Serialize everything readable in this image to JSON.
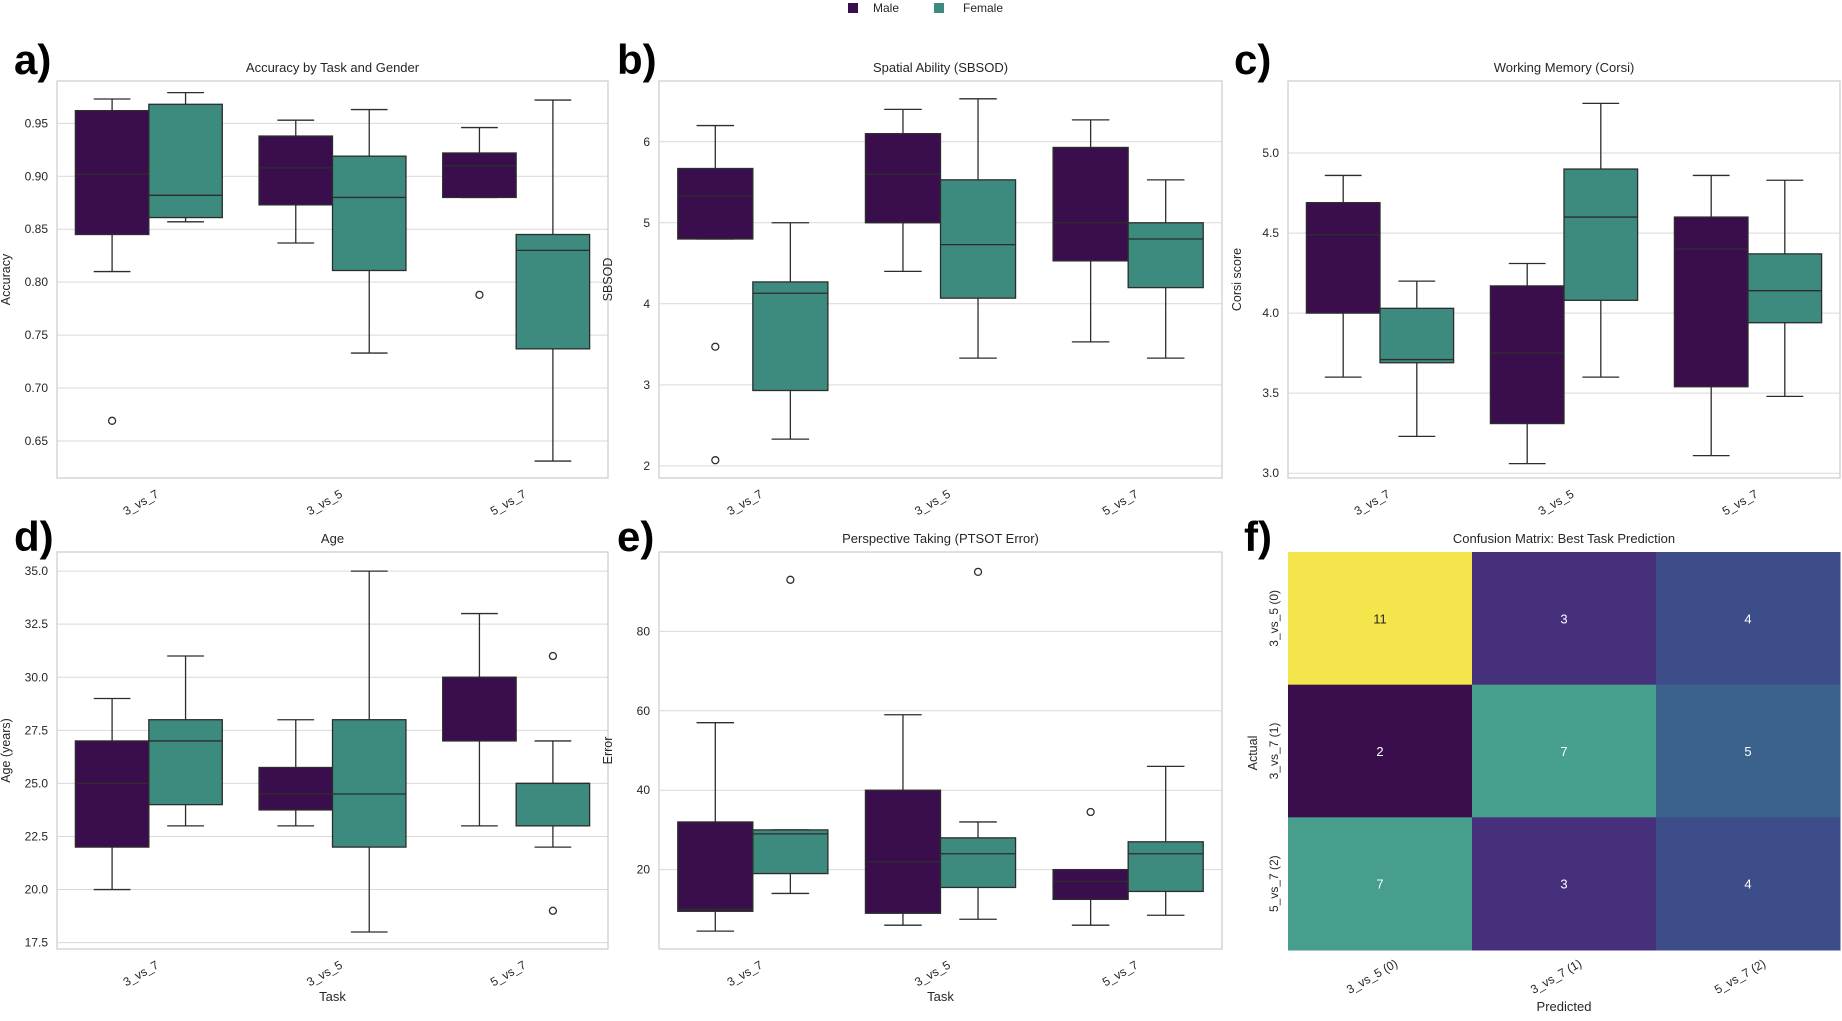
{
  "legend": {
    "items": [
      {
        "label": "Male",
        "color": "#3a0e4d"
      },
      {
        "label": "Female",
        "color": "#3d8a7e"
      }
    ]
  },
  "colors": {
    "male": "#3a0e4d",
    "female": "#3d8a7e",
    "grid": "#d9d9d9",
    "axis": "#cccccc",
    "whisker": "#2d2d2d"
  },
  "chart_data": [
    {
      "type": "box",
      "panel_label": "a)",
      "title": "Accuracy by Task and Gender",
      "xlabel": "",
      "ylabel": "Accuracy",
      "categories": [
        "3_vs_7",
        "3_vs_5",
        "5_vs_7"
      ],
      "ylim": [
        0.615,
        0.99
      ],
      "yticks": [
        0.65,
        0.7,
        0.75,
        0.8,
        0.85,
        0.9,
        0.95
      ],
      "ytick_labels": [
        "0.65",
        "0.70",
        "0.75",
        "0.80",
        "0.85",
        "0.90",
        "0.95"
      ],
      "series": [
        {
          "name": "Male",
          "boxes": [
            {
              "min": 0.81,
              "q1": 0.845,
              "median": 0.902,
              "q3": 0.962,
              "max": 0.973,
              "outliers": [
                0.669
              ]
            },
            {
              "min": 0.837,
              "q1": 0.873,
              "median": 0.908,
              "q3": 0.938,
              "max": 0.953,
              "outliers": []
            },
            {
              "min": 0.88,
              "q1": 0.88,
              "median": 0.91,
              "q3": 0.922,
              "max": 0.946,
              "outliers": [
                0.788
              ]
            }
          ]
        },
        {
          "name": "Female",
          "boxes": [
            {
              "min": 0.857,
              "q1": 0.861,
              "median": 0.882,
              "q3": 0.968,
              "max": 0.979,
              "outliers": []
            },
            {
              "min": 0.733,
              "q1": 0.811,
              "median": 0.88,
              "q3": 0.919,
              "max": 0.963,
              "outliers": []
            },
            {
              "min": 0.631,
              "q1": 0.737,
              "median": 0.83,
              "q3": 0.845,
              "max": 0.972,
              "outliers": []
            }
          ]
        }
      ]
    },
    {
      "type": "box",
      "panel_label": "b)",
      "title": "Spatial Ability (SBSOD)",
      "xlabel": "",
      "ylabel": "SBSOD",
      "categories": [
        "3_vs_7",
        "3_vs_5",
        "5_vs_7"
      ],
      "ylim": [
        1.85,
        6.75
      ],
      "yticks": [
        2,
        3,
        4,
        5,
        6
      ],
      "ytick_labels": [
        "2",
        "3",
        "4",
        "5",
        "6"
      ],
      "series": [
        {
          "name": "Male",
          "boxes": [
            {
              "min": 4.8,
              "q1": 4.8,
              "median": 5.33,
              "q3": 5.67,
              "max": 6.2,
              "outliers": [
                3.47,
                2.07
              ]
            },
            {
              "min": 4.4,
              "q1": 5.0,
              "median": 5.6,
              "q3": 6.1,
              "max": 6.4,
              "outliers": []
            },
            {
              "min": 3.53,
              "q1": 4.53,
              "median": 5.0,
              "q3": 5.93,
              "max": 6.27,
              "outliers": []
            }
          ]
        },
        {
          "name": "Female",
          "boxes": [
            {
              "min": 2.33,
              "q1": 2.93,
              "median": 4.13,
              "q3": 4.27,
              "max": 5.0,
              "outliers": []
            },
            {
              "min": 3.33,
              "q1": 4.07,
              "median": 4.73,
              "q3": 5.53,
              "max": 6.53,
              "outliers": []
            },
            {
              "min": 3.33,
              "q1": 4.2,
              "median": 4.8,
              "q3": 5.0,
              "max": 5.53,
              "outliers": []
            }
          ]
        }
      ]
    },
    {
      "type": "box",
      "panel_label": "c)",
      "title": "Working Memory (Corsi)",
      "xlabel": "",
      "ylabel": "Corsi score",
      "categories": [
        "3_vs_7",
        "3_vs_5",
        "5_vs_7"
      ],
      "ylim": [
        2.97,
        5.45
      ],
      "yticks": [
        3.0,
        3.5,
        4.0,
        4.5,
        5.0
      ],
      "ytick_labels": [
        "3.0",
        "3.5",
        "4.0",
        "4.5",
        "5.0"
      ],
      "series": [
        {
          "name": "Male",
          "boxes": [
            {
              "min": 3.6,
              "q1": 4.0,
              "median": 4.49,
              "q3": 4.69,
              "max": 4.86,
              "outliers": []
            },
            {
              "min": 3.06,
              "q1": 3.31,
              "median": 3.75,
              "q3": 4.17,
              "max": 4.31,
              "outliers": []
            },
            {
              "min": 3.11,
              "q1": 3.54,
              "median": 4.4,
              "q3": 4.6,
              "max": 4.86,
              "outliers": []
            }
          ]
        },
        {
          "name": "Female",
          "boxes": [
            {
              "min": 3.23,
              "q1": 3.69,
              "median": 3.71,
              "q3": 4.03,
              "max": 4.2,
              "outliers": []
            },
            {
              "min": 3.6,
              "q1": 4.08,
              "median": 4.6,
              "q3": 4.9,
              "max": 5.31,
              "outliers": []
            },
            {
              "min": 3.48,
              "q1": 3.94,
              "median": 4.14,
              "q3": 4.37,
              "max": 4.83,
              "outliers": []
            }
          ]
        }
      ]
    },
    {
      "type": "box",
      "panel_label": "d)",
      "title": "Age",
      "xlabel": "Task",
      "ylabel": "Age (years)",
      "categories": [
        "3_vs_7",
        "3_vs_5",
        "5_vs_7"
      ],
      "ylim": [
        17.2,
        35.9
      ],
      "yticks": [
        17.5,
        20.0,
        22.5,
        25.0,
        27.5,
        30.0,
        32.5,
        35.0
      ],
      "ytick_labels": [
        "17.5",
        "20.0",
        "22.5",
        "25.0",
        "27.5",
        "30.0",
        "32.5",
        "35.0"
      ],
      "series": [
        {
          "name": "Male",
          "boxes": [
            {
              "min": 20.0,
              "q1": 22.0,
              "median": 25.0,
              "q3": 27.0,
              "max": 29.0,
              "outliers": []
            },
            {
              "min": 23.0,
              "q1": 23.75,
              "median": 24.5,
              "q3": 25.75,
              "max": 28.0,
              "outliers": []
            },
            {
              "min": 23.0,
              "q1": 27.0,
              "median": 30.0,
              "q3": 30.0,
              "max": 33.0,
              "outliers": []
            }
          ]
        },
        {
          "name": "Female",
          "boxes": [
            {
              "min": 23.0,
              "q1": 24.0,
              "median": 27.0,
              "q3": 28.0,
              "max": 31.0,
              "outliers": []
            },
            {
              "min": 18.0,
              "q1": 22.0,
              "median": 24.5,
              "q3": 28.0,
              "max": 35.0,
              "outliers": []
            },
            {
              "min": 22.0,
              "q1": 23.0,
              "median": 25.0,
              "q3": 25.0,
              "max": 27.0,
              "outliers": [
                31.0,
                19.0
              ]
            }
          ]
        }
      ]
    },
    {
      "type": "box",
      "panel_label": "e)",
      "title": "Perspective Taking (PTSOT Error)",
      "xlabel": "Task",
      "ylabel": "Error",
      "categories": [
        "3_vs_7",
        "3_vs_5",
        "5_vs_7"
      ],
      "ylim": [
        0,
        100
      ],
      "yticks": [
        20,
        40,
        60,
        80
      ],
      "ytick_labels": [
        "20",
        "40",
        "60",
        "80"
      ],
      "series": [
        {
          "name": "Male",
          "boxes": [
            {
              "min": 4.5,
              "q1": 9.5,
              "median": 10.0,
              "q3": 32.0,
              "max": 57.0,
              "outliers": []
            },
            {
              "min": 6.0,
              "q1": 9.0,
              "median": 22.0,
              "q3": 40.0,
              "max": 59.0,
              "outliers": []
            },
            {
              "min": 6.0,
              "q1": 12.5,
              "median": 17.0,
              "q3": 20.0,
              "max": 20.0,
              "outliers": [
                34.5
              ]
            }
          ]
        },
        {
          "name": "Female",
          "boxes": [
            {
              "min": 14.0,
              "q1": 19.0,
              "median": 29.0,
              "q3": 30.0,
              "max": 30.0,
              "outliers": [
                93.0
              ]
            },
            {
              "min": 7.5,
              "q1": 15.5,
              "median": 24.0,
              "q3": 28.0,
              "max": 32.0,
              "outliers": [
                95.0
              ]
            },
            {
              "min": 8.5,
              "q1": 14.5,
              "median": 24.0,
              "q3": 27.0,
              "max": 46.0,
              "outliers": []
            }
          ]
        }
      ]
    },
    {
      "type": "heatmap",
      "panel_label": "f)",
      "title": "Confusion Matrix: Best Task Prediction",
      "xlabel": "Predicted",
      "ylabel": "Actual",
      "row_labels": [
        "3_vs_5 (0)",
        "3_vs_7 (1)",
        "5_vs_7 (2)"
      ],
      "col_labels": [
        "3_vs_5 (0)",
        "3_vs_7 (1)",
        "5_vs_7 (2)"
      ],
      "matrix": [
        [
          11,
          3,
          4
        ],
        [
          2,
          7,
          5
        ],
        [
          7,
          3,
          4
        ]
      ],
      "colors": [
        [
          "#f4e54c",
          "#462f7b",
          "#3d4d8a"
        ],
        [
          "#3a0e4d",
          "#47a08d",
          "#3a628b"
        ],
        [
          "#479e8d",
          "#462f7b",
          "#3d4d8a"
        ]
      ]
    }
  ]
}
